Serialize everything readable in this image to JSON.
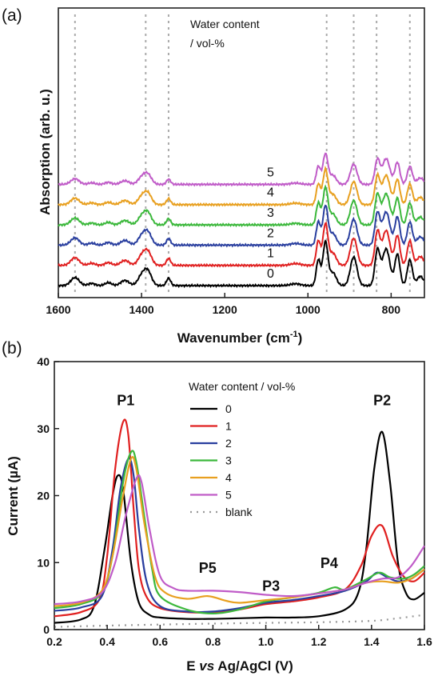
{
  "panels": {
    "a": {
      "label": "(a)",
      "legend_title_line1": "Water content",
      "legend_title_line2": "/ vol-%",
      "ylabel": "Absorption (arb. u.)",
      "xlabel": "Wavenumber (cm",
      "xlabel_sup": "-1",
      "xlabel_end": ")"
    },
    "b": {
      "label": "(b)",
      "legend_title": "Water content / vol-%",
      "ylabel": "Current (µA)",
      "xlabel_pre": "E ",
      "xlabel_vs": "vs",
      "xlabel_post": " Ag/AgCl (V)"
    }
  },
  "chart_data": [
    {
      "type": "line",
      "panel": "a",
      "xlabel": "Wavenumber (cm-1)",
      "ylabel": "Absorption (arb. u.)",
      "xlim": [
        1600,
        720
      ],
      "x_reversed": true,
      "xticks": [
        1600,
        1400,
        1200,
        1000,
        800
      ],
      "y_ticks_shown": false,
      "dashed_reference_lines": [
        1560,
        1390,
        1335,
        955,
        890,
        835,
        755
      ],
      "series": [
        {
          "name": "0",
          "color": "#000000",
          "offset": 0.0
        },
        {
          "name": "1",
          "color": "#e02020",
          "offset": 0.55
        },
        {
          "name": "2",
          "color": "#2a3f9f",
          "offset": 1.1
        },
        {
          "name": "3",
          "color": "#3cb83c",
          "offset": 1.65
        },
        {
          "name": "4",
          "color": "#e8a020",
          "offset": 2.2
        },
        {
          "name": "5",
          "color": "#c05cc8",
          "offset": 2.75
        }
      ],
      "peaks": [
        {
          "x": 1560,
          "h": 0.22,
          "w": 10
        },
        {
          "x": 1520,
          "h": 0.06,
          "w": 8
        },
        {
          "x": 1480,
          "h": 0.08,
          "w": 8
        },
        {
          "x": 1440,
          "h": 0.14,
          "w": 10
        },
        {
          "x": 1400,
          "h": 0.25,
          "w": 9
        },
        {
          "x": 1385,
          "h": 0.38,
          "w": 9
        },
        {
          "x": 1335,
          "h": 0.2,
          "w": 5
        },
        {
          "x": 1030,
          "h": 0.05,
          "w": 12
        },
        {
          "x": 975,
          "h": 0.7,
          "w": 5
        },
        {
          "x": 958,
          "h": 1.18,
          "w": 6
        },
        {
          "x": 940,
          "h": 0.35,
          "w": 8
        },
        {
          "x": 890,
          "h": 0.78,
          "w": 8
        },
        {
          "x": 833,
          "h": 0.95,
          "w": 6
        },
        {
          "x": 812,
          "h": 1.0,
          "w": 9
        },
        {
          "x": 785,
          "h": 0.85,
          "w": 6
        },
        {
          "x": 755,
          "h": 0.7,
          "w": 6
        },
        {
          "x": 730,
          "h": 0.25,
          "w": 8
        }
      ]
    },
    {
      "type": "line",
      "panel": "b",
      "xlabel": "E vs Ag/AgCl (V)",
      "ylabel": "Current (µA)",
      "xlim": [
        0.2,
        1.6
      ],
      "ylim": [
        0,
        40
      ],
      "xticks": [
        0.2,
        0.4,
        0.6,
        0.8,
        1.0,
        1.2,
        1.4,
        1.6
      ],
      "yticks": [
        0,
        10,
        20,
        30,
        40
      ],
      "annotations": [
        {
          "text": "P1",
          "x": 0.47,
          "y": 33.5
        },
        {
          "text": "P2",
          "x": 1.44,
          "y": 33.5
        },
        {
          "text": "P3",
          "x": 1.02,
          "y": 5.8
        },
        {
          "text": "P4",
          "x": 1.24,
          "y": 9.2
        },
        {
          "text": "P5",
          "x": 0.78,
          "y": 8.5
        }
      ],
      "series": [
        {
          "name": "0",
          "color": "#000000",
          "x": [
            0.2,
            0.3,
            0.35,
            0.39,
            0.42,
            0.44,
            0.46,
            0.49,
            0.52,
            0.56,
            0.6,
            0.7,
            0.8,
            0.9,
            1.0,
            1.1,
            1.2,
            1.3,
            1.35,
            1.38,
            1.41,
            1.44,
            1.47,
            1.5,
            1.53,
            1.56,
            1.6
          ],
          "y": [
            1.0,
            1.5,
            3.5,
            12,
            20,
            23,
            21,
            10,
            4,
            2.2,
            1.8,
            1.6,
            1.6,
            1.7,
            1.8,
            1.8,
            2.0,
            3.0,
            5.5,
            12,
            24,
            29.5,
            22,
            10,
            5.5,
            4.5,
            5.5
          ]
        },
        {
          "name": "1",
          "color": "#e02020",
          "x": [
            0.2,
            0.3,
            0.37,
            0.4,
            0.43,
            0.46,
            0.48,
            0.5,
            0.52,
            0.55,
            0.6,
            0.7,
            0.8,
            0.9,
            1.0,
            1.1,
            1.2,
            1.3,
            1.36,
            1.4,
            1.44,
            1.48,
            1.52,
            1.56,
            1.6
          ],
          "y": [
            2.0,
            2.6,
            4.5,
            11,
            24,
            31,
            29,
            18,
            9,
            4.8,
            3.2,
            2.6,
            2.6,
            3.0,
            3.8,
            4.2,
            4.8,
            6.0,
            9.5,
            14,
            15.5,
            11,
            8,
            7.2,
            8.5
          ]
        },
        {
          "name": "2",
          "color": "#2a3f9f",
          "x": [
            0.2,
            0.3,
            0.38,
            0.42,
            0.45,
            0.48,
            0.5,
            0.52,
            0.55,
            0.6,
            0.7,
            0.8,
            0.9,
            1.0,
            1.1,
            1.2,
            1.3,
            1.38,
            1.42,
            1.46,
            1.5,
            1.55,
            1.6
          ],
          "y": [
            2.8,
            3.3,
            5.0,
            12,
            21,
            25.5,
            23,
            15,
            7,
            3.5,
            2.7,
            2.7,
            3.2,
            4.0,
            4.4,
            5.0,
            5.8,
            7.2,
            8.5,
            7.8,
            7.2,
            7.6,
            9.0
          ]
        },
        {
          "name": "3",
          "color": "#3cb83c",
          "x": [
            0.2,
            0.3,
            0.38,
            0.42,
            0.46,
            0.49,
            0.51,
            0.54,
            0.57,
            0.6,
            0.7,
            0.8,
            0.9,
            1.0,
            1.1,
            1.2,
            1.26,
            1.3,
            1.38,
            1.43,
            1.47,
            1.52,
            1.56,
            1.6
          ],
          "y": [
            3.2,
            3.8,
            5.5,
            11,
            22,
            26.5,
            25,
            17,
            9,
            5.0,
            3.0,
            2.4,
            3.0,
            4.2,
            4.8,
            5.5,
            6.3,
            6.0,
            7.5,
            8.5,
            7.8,
            7.6,
            8.2,
            9.5
          ]
        },
        {
          "name": "4",
          "color": "#e8a020",
          "x": [
            0.2,
            0.3,
            0.38,
            0.42,
            0.46,
            0.49,
            0.51,
            0.54,
            0.58,
            0.62,
            0.7,
            0.78,
            0.85,
            0.9,
            1.0,
            1.1,
            1.2,
            1.3,
            1.38,
            1.44,
            1.5,
            1.55,
            1.6
          ],
          "y": [
            3.5,
            4.0,
            5.8,
            11,
            20,
            25.5,
            24,
            16,
            8,
            5.5,
            4.6,
            5.0,
            4.3,
            4.0,
            4.4,
            4.8,
            5.4,
            6.0,
            7.0,
            7.2,
            7.0,
            7.6,
            9.0
          ]
        },
        {
          "name": "5",
          "color": "#c05cc8",
          "x": [
            0.2,
            0.3,
            0.38,
            0.43,
            0.47,
            0.51,
            0.53,
            0.56,
            0.6,
            0.65,
            0.7,
            0.8,
            0.9,
            1.0,
            1.1,
            1.2,
            1.3,
            1.38,
            1.44,
            1.5,
            1.55,
            1.6
          ],
          "y": [
            3.8,
            4.2,
            5.5,
            10,
            17,
            22.5,
            22,
            15,
            8,
            6.2,
            5.8,
            5.8,
            5.6,
            5.2,
            5.0,
            5.4,
            6.0,
            7.0,
            7.6,
            7.8,
            9.5,
            12.5
          ]
        },
        {
          "name": "blank",
          "color": "#999999",
          "dashed": true,
          "x": [
            0.2,
            0.4,
            0.6,
            0.8,
            1.0,
            1.2,
            1.4,
            1.5,
            1.6
          ],
          "y": [
            0.4,
            0.6,
            0.75,
            0.9,
            1.0,
            1.1,
            1.3,
            1.7,
            2.2
          ]
        }
      ]
    }
  ]
}
